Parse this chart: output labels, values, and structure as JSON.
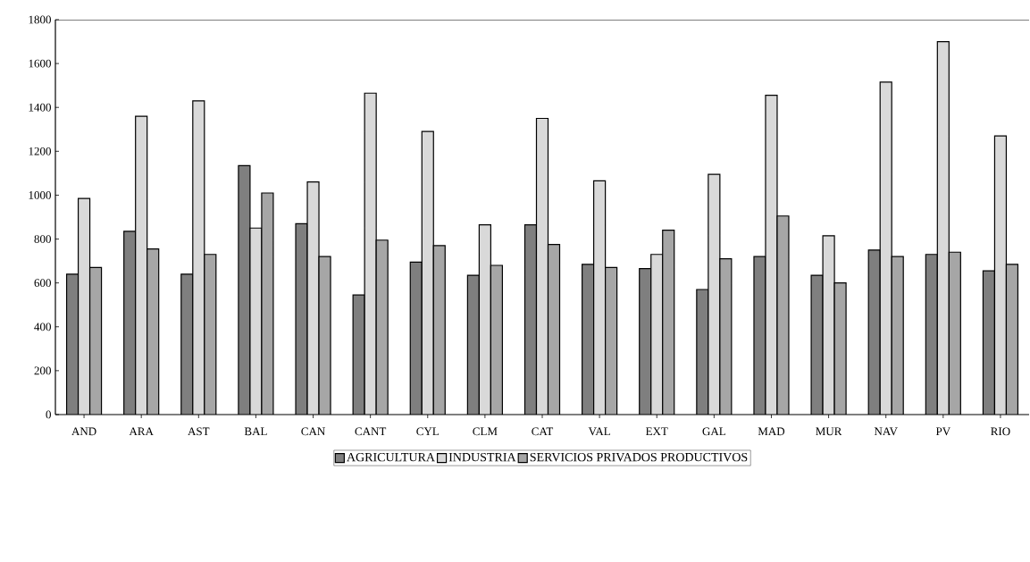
{
  "chart_data": {
    "type": "bar",
    "categories": [
      "AND",
      "ARA",
      "AST",
      "BAL",
      "CAN",
      "CANT",
      "CYL",
      "CLM",
      "CAT",
      "VAL",
      "EXT",
      "GAL",
      "MAD",
      "MUR",
      "NAV",
      "PV",
      "RIO"
    ],
    "series": [
      {
        "name": "AGRICULTURA",
        "color": "#7f7f7f",
        "values": [
          640,
          835,
          640,
          1135,
          870,
          545,
          695,
          635,
          865,
          685,
          665,
          570,
          720,
          635,
          750,
          730,
          655
        ]
      },
      {
        "name": "INDUSTRIA",
        "color": "#d9d9d9",
        "values": [
          985,
          1360,
          1430,
          850,
          1060,
          1465,
          1290,
          865,
          1350,
          1065,
          730,
          1095,
          1455,
          815,
          1515,
          1700,
          1270
        ]
      },
      {
        "name": "SERVICIOS PRIVADOS PRODUCTIVOS",
        "color": "#a6a6a6",
        "values": [
          670,
          755,
          730,
          1010,
          720,
          795,
          770,
          680,
          775,
          670,
          840,
          710,
          905,
          600,
          720,
          740,
          685
        ]
      }
    ],
    "ylim": [
      0,
      1800
    ],
    "yticks": [
      0,
      200,
      400,
      600,
      800,
      1000,
      1200,
      1400,
      1600,
      1800
    ],
    "grid": false,
    "legend": "bottom"
  }
}
